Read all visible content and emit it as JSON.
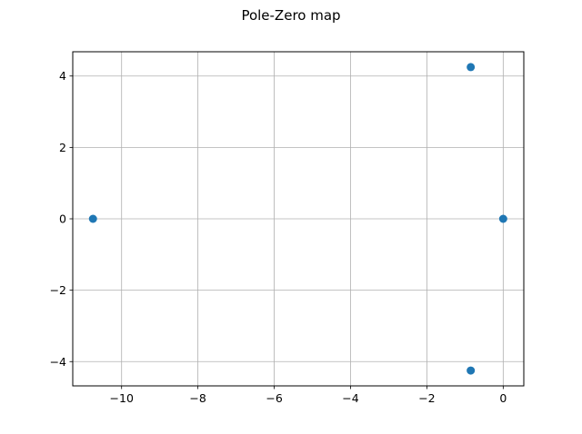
{
  "chart_data": {
    "type": "scatter",
    "title": "Pole-Zero map",
    "xlabel": "",
    "ylabel": "",
    "xlim": [
      -11.28,
      0.54
    ],
    "ylim": [
      -4.68,
      4.68
    ],
    "xticks": [
      -10,
      -8,
      -6,
      -4,
      -2,
      0
    ],
    "yticks": [
      -4,
      -2,
      0,
      2,
      4
    ],
    "xtick_labels": [
      "−10",
      "−8",
      "−6",
      "−4",
      "−2",
      "0"
    ],
    "ytick_labels": [
      "−4",
      "−2",
      "0",
      "2",
      "4"
    ],
    "grid": true,
    "marker_color": "#1f77b4",
    "points": [
      {
        "x": -10.75,
        "y": 0
      },
      {
        "x": -0.85,
        "y": 4.25
      },
      {
        "x": -0.85,
        "y": -4.25
      },
      {
        "x": 0,
        "y": 0
      }
    ]
  }
}
